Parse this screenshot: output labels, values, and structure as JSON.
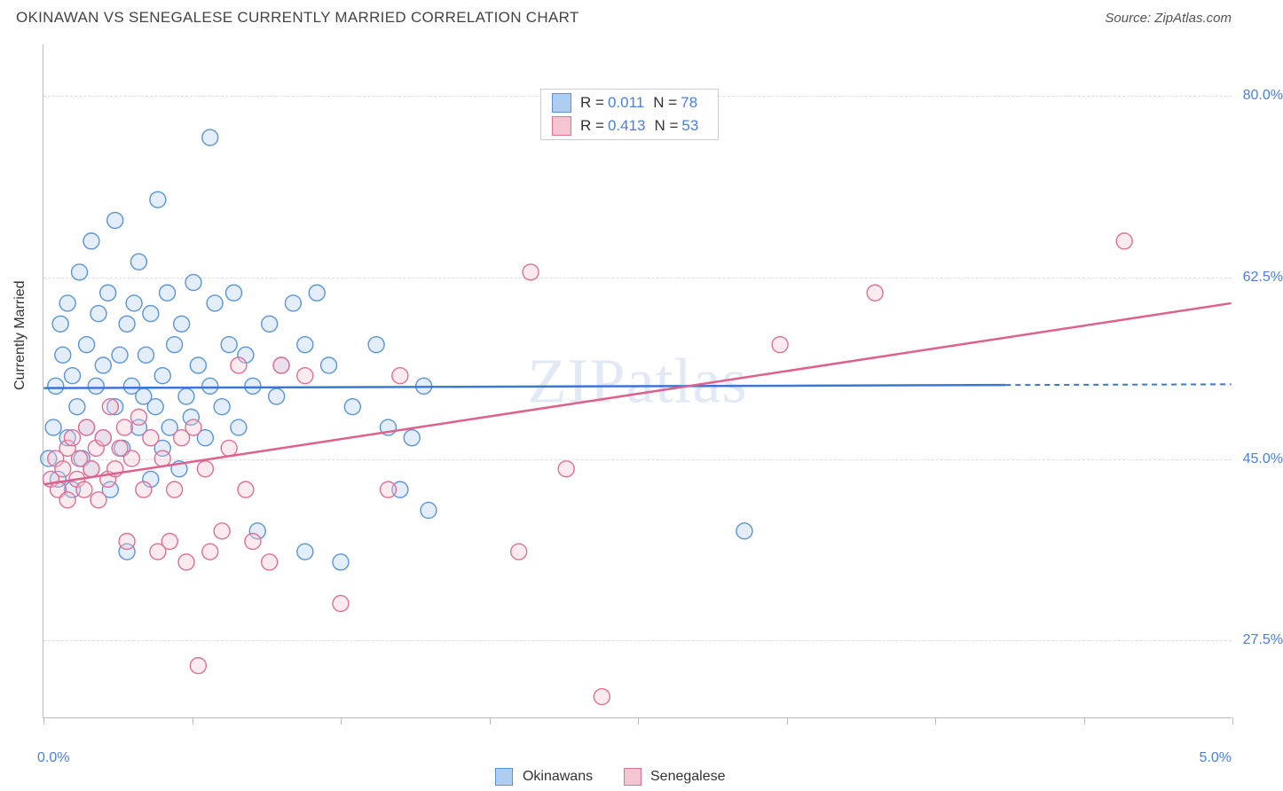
{
  "title": "OKINAWAN VS SENEGALESE CURRENTLY MARRIED CORRELATION CHART",
  "source_label": "Source: ",
  "source_value": "ZipAtlas.com",
  "watermark": "ZIPatlas",
  "chart": {
    "type": "scatter",
    "ylabel": "Currently Married",
    "xlim": [
      0.0,
      5.0
    ],
    "ylim": [
      20.0,
      85.0
    ],
    "xlim_labels": [
      "0.0%",
      "5.0%"
    ],
    "xtick_positions": [
      0.0,
      0.625,
      1.25,
      1.875,
      2.5,
      3.125,
      3.75,
      4.375,
      5.0
    ],
    "yticks": [
      27.5,
      45.0,
      62.5,
      80.0
    ],
    "ytick_labels": [
      "27.5%",
      "45.0%",
      "62.5%",
      "80.0%"
    ],
    "grid_color": "#dcdcdc",
    "axis_color": "#bbbbbb",
    "background_color": "#ffffff",
    "marker_radius": 9,
    "marker_fill_opacity": 0.35,
    "marker_stroke_width": 1.4,
    "series": [
      {
        "name": "Okinawans",
        "color_fill": "#aecdf0",
        "color_stroke": "#5a94d6",
        "trend_color": "#3b76d6",
        "R": "0.011",
        "N": "78",
        "trend_line": {
          "x1": 0.0,
          "y1": 51.8,
          "x2": 4.05,
          "y2": 52.1,
          "dashed_extend_to": 5.0
        },
        "points": [
          [
            0.02,
            45
          ],
          [
            0.04,
            48
          ],
          [
            0.05,
            52
          ],
          [
            0.06,
            43
          ],
          [
            0.07,
            58
          ],
          [
            0.08,
            55
          ],
          [
            0.1,
            47
          ],
          [
            0.1,
            60
          ],
          [
            0.12,
            42
          ],
          [
            0.12,
            53
          ],
          [
            0.14,
            50
          ],
          [
            0.15,
            63
          ],
          [
            0.16,
            45
          ],
          [
            0.18,
            56
          ],
          [
            0.18,
            48
          ],
          [
            0.2,
            66
          ],
          [
            0.2,
            44
          ],
          [
            0.22,
            52
          ],
          [
            0.23,
            59
          ],
          [
            0.25,
            47
          ],
          [
            0.25,
            54
          ],
          [
            0.27,
            61
          ],
          [
            0.28,
            42
          ],
          [
            0.3,
            50
          ],
          [
            0.3,
            68
          ],
          [
            0.32,
            55
          ],
          [
            0.33,
            46
          ],
          [
            0.35,
            58
          ],
          [
            0.35,
            36
          ],
          [
            0.37,
            52
          ],
          [
            0.38,
            60
          ],
          [
            0.4,
            48
          ],
          [
            0.4,
            64
          ],
          [
            0.42,
            51
          ],
          [
            0.43,
            55
          ],
          [
            0.45,
            43
          ],
          [
            0.45,
            59
          ],
          [
            0.47,
            50
          ],
          [
            0.48,
            70
          ],
          [
            0.5,
            46
          ],
          [
            0.5,
            53
          ],
          [
            0.52,
            61
          ],
          [
            0.53,
            48
          ],
          [
            0.55,
            56
          ],
          [
            0.57,
            44
          ],
          [
            0.58,
            58
          ],
          [
            0.6,
            51
          ],
          [
            0.62,
            49
          ],
          [
            0.63,
            62
          ],
          [
            0.65,
            54
          ],
          [
            0.68,
            47
          ],
          [
            0.7,
            76
          ],
          [
            0.7,
            52
          ],
          [
            0.72,
            60
          ],
          [
            0.75,
            50
          ],
          [
            0.78,
            56
          ],
          [
            0.8,
            61
          ],
          [
            0.82,
            48
          ],
          [
            0.85,
            55
          ],
          [
            0.88,
            52
          ],
          [
            0.9,
            38
          ],
          [
            0.95,
            58
          ],
          [
            0.98,
            51
          ],
          [
            1.0,
            54
          ],
          [
            1.05,
            60
          ],
          [
            1.1,
            36
          ],
          [
            1.1,
            56
          ],
          [
            1.15,
            61
          ],
          [
            1.2,
            54
          ],
          [
            1.25,
            35
          ],
          [
            1.3,
            50
          ],
          [
            1.4,
            56
          ],
          [
            1.45,
            48
          ],
          [
            1.5,
            42
          ],
          [
            1.55,
            47
          ],
          [
            1.6,
            52
          ],
          [
            1.62,
            40
          ],
          [
            2.95,
            38
          ]
        ]
      },
      {
        "name": "Senegalese",
        "color_fill": "#f3c6d2",
        "color_stroke": "#de6f95",
        "trend_color": "#e05f8b",
        "R": "0.413",
        "N": "53",
        "trend_line": {
          "x1": 0.0,
          "y1": 42.5,
          "x2": 5.0,
          "y2": 60.0
        },
        "points": [
          [
            0.03,
            43
          ],
          [
            0.05,
            45
          ],
          [
            0.06,
            42
          ],
          [
            0.08,
            44
          ],
          [
            0.1,
            46
          ],
          [
            0.1,
            41
          ],
          [
            0.12,
            47
          ],
          [
            0.14,
            43
          ],
          [
            0.15,
            45
          ],
          [
            0.17,
            42
          ],
          [
            0.18,
            48
          ],
          [
            0.2,
            44
          ],
          [
            0.22,
            46
          ],
          [
            0.23,
            41
          ],
          [
            0.25,
            47
          ],
          [
            0.27,
            43
          ],
          [
            0.28,
            50
          ],
          [
            0.3,
            44
          ],
          [
            0.32,
            46
          ],
          [
            0.34,
            48
          ],
          [
            0.35,
            37
          ],
          [
            0.37,
            45
          ],
          [
            0.4,
            49
          ],
          [
            0.42,
            42
          ],
          [
            0.45,
            47
          ],
          [
            0.48,
            36
          ],
          [
            0.5,
            45
          ],
          [
            0.53,
            37
          ],
          [
            0.55,
            42
          ],
          [
            0.58,
            47
          ],
          [
            0.6,
            35
          ],
          [
            0.63,
            48
          ],
          [
            0.65,
            25
          ],
          [
            0.68,
            44
          ],
          [
            0.7,
            36
          ],
          [
            0.75,
            38
          ],
          [
            0.78,
            46
          ],
          [
            0.82,
            54
          ],
          [
            0.85,
            42
          ],
          [
            0.88,
            37
          ],
          [
            0.95,
            35
          ],
          [
            1.0,
            54
          ],
          [
            1.1,
            53
          ],
          [
            1.25,
            31
          ],
          [
            1.45,
            42
          ],
          [
            1.5,
            53
          ],
          [
            2.0,
            36
          ],
          [
            2.05,
            63
          ],
          [
            2.2,
            44
          ],
          [
            2.35,
            22
          ],
          [
            3.1,
            56
          ],
          [
            3.5,
            61
          ],
          [
            4.55,
            66
          ]
        ]
      }
    ]
  },
  "legend_top": {
    "r_label": "R =",
    "n_label": "N ="
  },
  "legend_bottom": {
    "items": [
      "Okinawans",
      "Senegalese"
    ]
  },
  "colors": {
    "text_primary": "#444444",
    "text_axis": "#4a7fe0"
  }
}
